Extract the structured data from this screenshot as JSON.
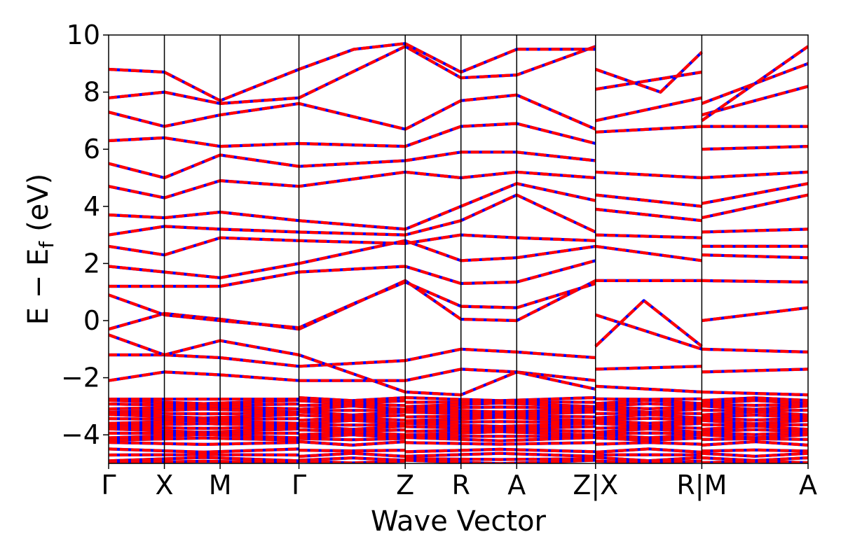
{
  "chart_data": {
    "type": "line",
    "title": "",
    "xlabel": "Wave Vector",
    "ylabel_main": "E − E",
    "ylabel_sub": "f",
    "ylabel_unit": "(eV)",
    "ylim": [
      -5,
      10
    ],
    "yticks": [
      10,
      8,
      6,
      4,
      2,
      0,
      -2,
      -4
    ],
    "ytick_labels": [
      "10",
      "8",
      "6",
      "4",
      "2",
      "0",
      "−2",
      "−4"
    ],
    "grid": false,
    "legend": "none",
    "path_breaks_after": [
      7,
      9
    ],
    "kpoints": [
      {
        "label": "Γ",
        "x": 0.0
      },
      {
        "label": "X",
        "x": 0.5
      },
      {
        "label": "M",
        "x": 1.0
      },
      {
        "label": "Γ",
        "x": 1.707
      },
      {
        "label": "Z",
        "x": 2.66
      },
      {
        "label": "R",
        "x": 3.16
      },
      {
        "label": "A",
        "x": 3.66
      },
      {
        "label": "Z",
        "x": 4.367
      },
      {
        "label": "X",
        "x": 4.367
      },
      {
        "label": "R",
        "x": 5.32
      },
      {
        "label": "M",
        "x": 5.32
      },
      {
        "label": "A",
        "x": 6.273
      }
    ],
    "kpoint_tick_labels": [
      "Γ",
      "X",
      "M",
      "Γ",
      "Z",
      "R",
      "A",
      "Z|X",
      "R|M",
      "A"
    ],
    "series": [
      {
        "style": "solid",
        "color": "#0000ff",
        "values": []
      },
      {
        "style": "dashed",
        "color": "#ff0000",
        "values": []
      }
    ],
    "bands": [
      [
        [
          0,
          -0.3
        ],
        [
          0.5,
          0.25
        ],
        [
          1.0,
          0.05
        ],
        [
          1.707,
          -0.3
        ],
        [
          2.66,
          1.4
        ],
        [
          3.16,
          0.05
        ],
        [
          3.66,
          0.0
        ],
        [
          4.367,
          1.4
        ]
      ],
      [
        [
          0,
          0.9
        ],
        [
          0.5,
          0.2
        ],
        [
          1.0,
          0.0
        ],
        [
          1.707,
          -0.25
        ],
        [
          2.2,
          0.6
        ],
        [
          2.66,
          1.35
        ],
        [
          3.16,
          0.5
        ],
        [
          3.66,
          0.45
        ],
        [
          4.367,
          1.3
        ]
      ],
      [
        [
          0,
          1.2
        ],
        [
          0.5,
          1.2
        ],
        [
          1.0,
          1.2
        ],
        [
          1.707,
          1.7
        ],
        [
          2.66,
          1.9
        ],
        [
          3.16,
          1.3
        ],
        [
          3.66,
          1.35
        ],
        [
          4.367,
          2.1
        ]
      ],
      [
        [
          0,
          1.9
        ],
        [
          0.5,
          1.7
        ],
        [
          1.0,
          1.5
        ],
        [
          1.707,
          2.0
        ],
        [
          2.66,
          2.8
        ],
        [
          3.16,
          2.1
        ],
        [
          3.66,
          2.2
        ],
        [
          4.367,
          2.6
        ]
      ],
      [
        [
          0,
          2.6
        ],
        [
          0.5,
          2.3
        ],
        [
          1.0,
          2.9
        ],
        [
          1.707,
          2.8
        ],
        [
          2.66,
          2.7
        ],
        [
          3.16,
          3.0
        ],
        [
          3.66,
          2.9
        ],
        [
          4.367,
          2.8
        ]
      ],
      [
        [
          0,
          3.0
        ],
        [
          0.5,
          3.3
        ],
        [
          1.0,
          3.2
        ],
        [
          1.707,
          3.1
        ],
        [
          2.66,
          3.0
        ],
        [
          3.16,
          3.5
        ],
        [
          3.66,
          4.4
        ],
        [
          4.367,
          3.1
        ]
      ],
      [
        [
          0,
          3.7
        ],
        [
          0.5,
          3.6
        ],
        [
          1.0,
          3.8
        ],
        [
          1.707,
          3.5
        ],
        [
          2.66,
          3.2
        ],
        [
          3.16,
          4.0
        ],
        [
          3.66,
          4.8
        ],
        [
          4.367,
          4.2
        ]
      ],
      [
        [
          0,
          4.7
        ],
        [
          0.5,
          4.3
        ],
        [
          1.0,
          4.9
        ],
        [
          1.707,
          4.7
        ],
        [
          2.66,
          5.2
        ],
        [
          3.16,
          5.0
        ],
        [
          3.66,
          5.2
        ],
        [
          4.367,
          5.0
        ]
      ],
      [
        [
          0,
          5.5
        ],
        [
          0.5,
          5.0
        ],
        [
          1.0,
          5.8
        ],
        [
          1.707,
          5.4
        ],
        [
          2.66,
          5.6
        ],
        [
          3.16,
          5.9
        ],
        [
          3.66,
          5.9
        ],
        [
          4.367,
          5.6
        ]
      ],
      [
        [
          0,
          6.3
        ],
        [
          0.5,
          6.4
        ],
        [
          1.0,
          6.1
        ],
        [
          1.707,
          6.2
        ],
        [
          2.66,
          6.1
        ],
        [
          3.16,
          6.8
        ],
        [
          3.66,
          6.9
        ],
        [
          4.367,
          6.2
        ]
      ],
      [
        [
          0,
          7.3
        ],
        [
          0.5,
          6.8
        ],
        [
          1.0,
          7.2
        ],
        [
          1.707,
          7.6
        ],
        [
          2.66,
          6.7
        ],
        [
          3.16,
          7.7
        ],
        [
          3.66,
          7.9
        ],
        [
          4.367,
          6.7
        ]
      ],
      [
        [
          0,
          7.8
        ],
        [
          0.5,
          8.0
        ],
        [
          1.0,
          7.6
        ],
        [
          1.707,
          7.8
        ],
        [
          2.66,
          9.6
        ],
        [
          3.16,
          8.5
        ],
        [
          3.66,
          8.6
        ],
        [
          4.367,
          9.6
        ]
      ],
      [
        [
          0,
          8.8
        ],
        [
          0.5,
          8.7
        ],
        [
          1.0,
          7.7
        ],
        [
          1.707,
          8.8
        ],
        [
          2.2,
          9.5
        ],
        [
          2.66,
          9.7
        ],
        [
          3.16,
          8.7
        ],
        [
          3.66,
          9.5
        ],
        [
          4.367,
          9.5
        ]
      ],
      [
        [
          0,
          -1.2
        ],
        [
          0.5,
          -1.2
        ],
        [
          1.0,
          -1.3
        ],
        [
          1.707,
          -1.6
        ],
        [
          2.66,
          -1.4
        ],
        [
          3.16,
          -1.0
        ],
        [
          3.66,
          -1.1
        ],
        [
          4.367,
          -1.3
        ]
      ],
      [
        [
          0,
          -2.1
        ],
        [
          0.5,
          -1.8
        ],
        [
          1.0,
          -1.9
        ],
        [
          1.707,
          -2.1
        ],
        [
          2.66,
          -2.1
        ],
        [
          3.16,
          -1.7
        ],
        [
          3.66,
          -1.8
        ],
        [
          4.367,
          -2.1
        ]
      ],
      [
        [
          0,
          -0.5
        ],
        [
          0.5,
          -1.2
        ],
        [
          1.0,
          -0.7
        ],
        [
          1.707,
          -1.2
        ],
        [
          2.66,
          -2.5
        ],
        [
          3.16,
          -2.6
        ],
        [
          3.66,
          -1.8
        ],
        [
          4.367,
          -2.4
        ]
      ],
      [
        [
          4.367,
          0.2
        ],
        [
          5.32,
          -1.0
        ]
      ],
      [
        [
          4.367,
          -0.9
        ],
        [
          4.8,
          0.7
        ],
        [
          5.32,
          -0.9
        ]
      ],
      [
        [
          4.367,
          1.4
        ],
        [
          5.32,
          1.4
        ]
      ],
      [
        [
          4.367,
          2.6
        ],
        [
          5.32,
          2.1
        ]
      ],
      [
        [
          4.367,
          3.0
        ],
        [
          5.32,
          2.9
        ]
      ],
      [
        [
          4.367,
          3.9
        ],
        [
          5.32,
          3.5
        ]
      ],
      [
        [
          4.367,
          4.4
        ],
        [
          5.32,
          4.0
        ]
      ],
      [
        [
          4.367,
          5.2
        ],
        [
          5.32,
          5.0
        ]
      ],
      [
        [
          4.367,
          6.6
        ],
        [
          5.32,
          6.8
        ]
      ],
      [
        [
          4.367,
          7.0
        ],
        [
          5.32,
          7.8
        ]
      ],
      [
        [
          4.367,
          8.1
        ],
        [
          5.32,
          8.7
        ]
      ],
      [
        [
          4.367,
          8.8
        ],
        [
          4.95,
          8.0
        ],
        [
          5.32,
          9.4
        ]
      ],
      [
        [
          4.367,
          -1.7
        ],
        [
          5.32,
          -1.6
        ]
      ],
      [
        [
          4.367,
          -2.3
        ],
        [
          5.32,
          -2.5
        ]
      ],
      [
        [
          5.32,
          1.4
        ],
        [
          6.273,
          1.35
        ]
      ],
      [
        [
          5.32,
          0.0
        ],
        [
          6.273,
          0.45
        ]
      ],
      [
        [
          5.32,
          2.3
        ],
        [
          6.273,
          2.2
        ]
      ],
      [
        [
          5.32,
          2.6
        ],
        [
          6.273,
          2.6
        ]
      ],
      [
        [
          5.32,
          3.1
        ],
        [
          6.273,
          3.2
        ]
      ],
      [
        [
          5.32,
          3.6
        ],
        [
          6.273,
          4.4
        ]
      ],
      [
        [
          5.32,
          4.1
        ],
        [
          6.273,
          4.8
        ]
      ],
      [
        [
          5.32,
          5.0
        ],
        [
          6.273,
          5.2
        ]
      ],
      [
        [
          5.32,
          6.0
        ],
        [
          6.273,
          6.1
        ]
      ],
      [
        [
          5.32,
          6.8
        ],
        [
          6.273,
          6.8
        ]
      ],
      [
        [
          5.32,
          7.2
        ],
        [
          6.273,
          8.2
        ]
      ],
      [
        [
          5.32,
          7.6
        ],
        [
          6.273,
          9.0
        ]
      ],
      [
        [
          5.32,
          7.0
        ],
        [
          6.273,
          9.6
        ]
      ],
      [
        [
          5.32,
          -1.0
        ],
        [
          6.273,
          -1.1
        ]
      ],
      [
        [
          5.32,
          -1.8
        ],
        [
          6.273,
          -1.7
        ]
      ],
      [
        [
          5.32,
          -2.5
        ],
        [
          6.273,
          -2.6
        ]
      ]
    ],
    "core_band_levels": [
      -2.75,
      -2.85,
      -2.95,
      -3.05,
      -3.15,
      -3.25,
      -3.35,
      -3.45,
      -3.55,
      -3.65,
      -3.75,
      -3.85,
      -3.95,
      -4.05,
      -4.15,
      -4.3,
      -4.55,
      -4.7,
      -4.85,
      -4.95
    ]
  }
}
